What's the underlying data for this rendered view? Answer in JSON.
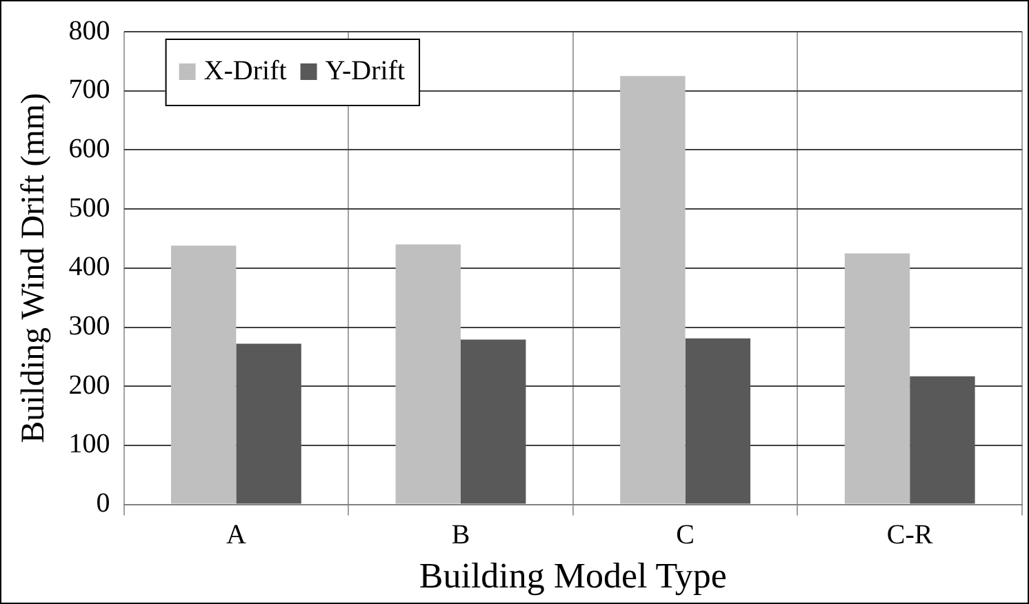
{
  "chart_data": {
    "type": "bar",
    "xlabel": "Building Model Type",
    "ylabel": "Building Wind Drift (mm)",
    "categories": [
      "A",
      "B",
      "C",
      "C-R"
    ],
    "series": [
      {
        "name": "X-Drift",
        "color": "#bfbfbf",
        "values": [
          438,
          440,
          725,
          425
        ]
      },
      {
        "name": "Y-Drift",
        "color": "#595959",
        "values": [
          272,
          279,
          281,
          217
        ]
      }
    ],
    "ylim": [
      0,
      800
    ],
    "yticks": [
      0,
      100,
      200,
      300,
      400,
      500,
      600,
      700,
      800
    ],
    "grid": true,
    "legend": "top left"
  }
}
